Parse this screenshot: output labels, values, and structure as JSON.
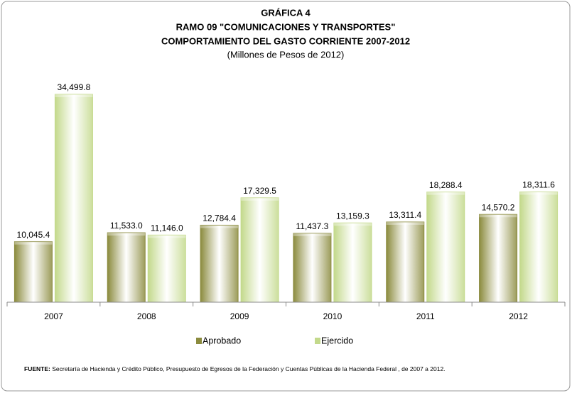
{
  "chart_data": {
    "type": "bar",
    "title": "GRÁFICA 4",
    "title_line2": "RAMO 09 \"COMUNICACIONES Y TRANSPORTES\"",
    "title_line3": "COMPORTAMIENTO DEL GASTO CORRIENTE 2007-2012",
    "subtitle": "(Millones de Pesos de 2012)",
    "categories": [
      "2007",
      "2008",
      "2009",
      "2010",
      "2011",
      "2012"
    ],
    "series": [
      {
        "name": "Aprobado",
        "color": "#8b8b3e",
        "values": [
          10045.4,
          11533.0,
          12784.4,
          11437.3,
          13311.4,
          14570.2
        ],
        "value_labels": [
          "10,045.4",
          "11,533.0",
          "12,784.4",
          "11,437.3",
          "13,311.4",
          "14,570.2"
        ]
      },
      {
        "name": "Ejercido",
        "color": "#c3d98b",
        "values": [
          34499.8,
          11146.0,
          17329.5,
          13159.3,
          18288.4,
          18311.6
        ],
        "value_labels": [
          "34,499.8",
          "11,146.0",
          "17,329.5",
          "13,159.3",
          "18,288.4",
          "18,311.6"
        ]
      }
    ],
    "source_label": "FUENTE:",
    "source": "Secretaría de Hacienda y Crédito Público,  Presupuesto de Egresos de la Federación y Cuentas Públicas de la Hacienda Federal , de 2007 a 2012."
  }
}
